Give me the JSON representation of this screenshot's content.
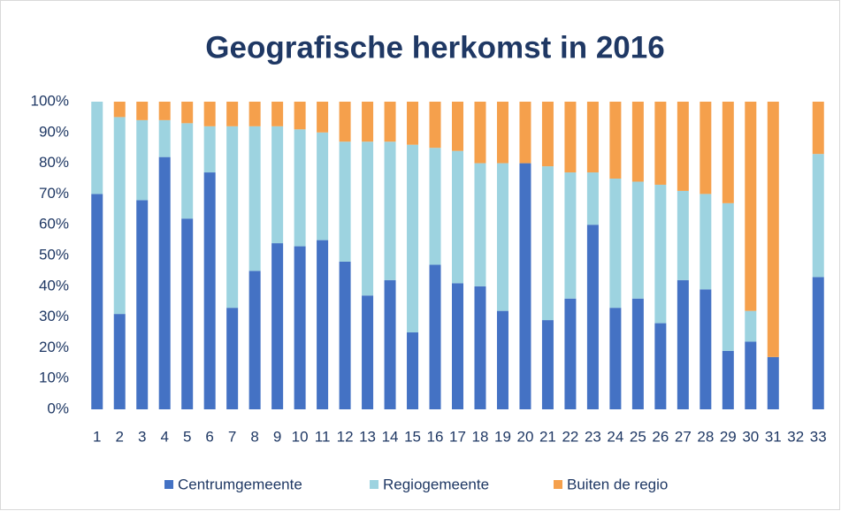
{
  "chart_data": {
    "type": "stacked_bar",
    "title": "Geografische herkomst in 2016",
    "categories": [
      "1",
      "2",
      "3",
      "4",
      "5",
      "6",
      "7",
      "8",
      "9",
      "10",
      "11",
      "12",
      "13",
      "14",
      "15",
      "16",
      "17",
      "18",
      "19",
      "20",
      "21",
      "22",
      "23",
      "24",
      "25",
      "26",
      "27",
      "28",
      "29",
      "30",
      "31",
      "32",
      "33"
    ],
    "series": [
      {
        "name": "Centrumgemeente",
        "color": "#4472c4",
        "values": [
          70,
          31,
          68,
          82,
          62,
          77,
          33,
          45,
          54,
          53,
          55,
          48,
          37,
          42,
          25,
          47,
          41,
          40,
          32,
          80,
          29,
          36,
          60,
          33,
          36,
          28,
          42,
          39,
          19,
          22,
          17,
          null,
          43
        ]
      },
      {
        "name": "Regiogemeente",
        "color": "#9dd3e0",
        "values": [
          30,
          64,
          26,
          12,
          31,
          15,
          59,
          47,
          38,
          38,
          35,
          39,
          50,
          45,
          61,
          38,
          43,
          40,
          48,
          0,
          50,
          41,
          17,
          42,
          38,
          45,
          29,
          31,
          48,
          10,
          0,
          null,
          40
        ]
      },
      {
        "name": "Buiten de regio",
        "color": "#f5a04c",
        "values": [
          0,
          5,
          6,
          6,
          7,
          8,
          8,
          8,
          8,
          9,
          10,
          13,
          13,
          13,
          14,
          15,
          16,
          20,
          20,
          20,
          21,
          23,
          23,
          25,
          26,
          27,
          29,
          30,
          33,
          68,
          83,
          null,
          17
        ]
      }
    ],
    "ylim": [
      0,
      100
    ],
    "yticks": [
      {
        "value": 0,
        "label": "0%"
      },
      {
        "value": 10,
        "label": "10%"
      },
      {
        "value": 20,
        "label": "20%"
      },
      {
        "value": 30,
        "label": "30%"
      },
      {
        "value": 40,
        "label": "40%"
      },
      {
        "value": 50,
        "label": "50%"
      },
      {
        "value": 60,
        "label": "60%"
      },
      {
        "value": 70,
        "label": "70%"
      },
      {
        "value": 80,
        "label": "80%"
      },
      {
        "value": 90,
        "label": "90%"
      },
      {
        "value": 100,
        "label": "100%"
      }
    ],
    "legend": "bottom"
  }
}
